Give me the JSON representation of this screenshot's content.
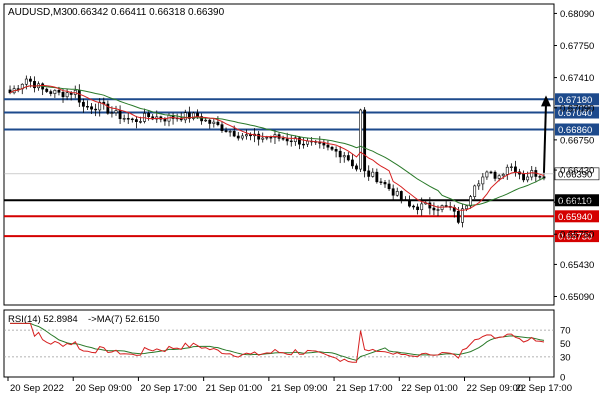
{
  "chart_data": {
    "type": "candlestick",
    "title": "AUDUSD,M30",
    "ohlc_header": "0.66342 0.66411 0.66318 0.66390",
    "price_axis": {
      "ticks": [
        0.6509,
        0.6543,
        0.6575,
        0.6609,
        0.6643,
        0.6675,
        0.6709,
        0.6741,
        0.6775,
        0.6809
      ],
      "tick_labels": [
        "0.65090",
        "0.65430",
        "0.65750",
        "0.66090",
        "0.66430",
        "0.66750",
        "0.67090",
        "0.67410",
        "0.67750",
        "0.68090"
      ],
      "ylim": [
        0.65,
        0.6819
      ]
    },
    "time_axis": {
      "labels": [
        "20 Sep 2022",
        "20 Sep 09:00",
        "20 Sep 17:00",
        "21 Sep 01:00",
        "21 Sep 09:00",
        "21 Sep 17:00",
        "22 Sep 01:00",
        "22 Sep 09:00",
        "22 Sep 17:00"
      ],
      "label_index": [
        0,
        16,
        32,
        48,
        64,
        80,
        96,
        112,
        128
      ],
      "total_bars": 132
    },
    "current_price": {
      "value": 0.6639,
      "label": "0.66390"
    },
    "levels": [
      {
        "value": 0.6718,
        "label": "0.67180",
        "color": "#1d4a8c"
      },
      {
        "value": 0.6704,
        "label": "0.67040",
        "color": "#1d4a8c"
      },
      {
        "value": 0.6686,
        "label": "0.66860",
        "color": "#1d4a8c"
      },
      {
        "value": 0.6611,
        "label": "0.66110",
        "color": "#000000"
      },
      {
        "value": 0.6594,
        "label": "0.65940",
        "color": "#d40000"
      },
      {
        "value": 0.6573,
        "label": "0.65730",
        "color": "#d40000"
      }
    ],
    "arrow": {
      "from": [
        131,
        0.664
      ],
      "to": [
        135,
        0.672
      ]
    },
    "moving_average_colors": {
      "fast": "#d62020",
      "slow": "#2a7a2a"
    },
    "price_path": [
      [
        0,
        0.6725
      ],
      [
        4,
        0.674
      ],
      [
        8,
        0.6728
      ],
      [
        12,
        0.6724
      ],
      [
        16,
        0.6726
      ],
      [
        18,
        0.671
      ],
      [
        22,
        0.6711
      ],
      [
        26,
        0.6702
      ],
      [
        30,
        0.6695
      ],
      [
        34,
        0.67
      ],
      [
        38,
        0.6698
      ],
      [
        42,
        0.67
      ],
      [
        46,
        0.67
      ],
      [
        48,
        0.6695
      ],
      [
        52,
        0.6688
      ],
      [
        56,
        0.6681
      ],
      [
        60,
        0.6677
      ],
      [
        64,
        0.6678
      ],
      [
        70,
        0.6675
      ],
      [
        74,
        0.667
      ],
      [
        78,
        0.6665
      ],
      [
        82,
        0.666
      ],
      [
        85,
        0.6645
      ],
      [
        86,
        0.6705
      ],
      [
        87,
        0.664
      ],
      [
        90,
        0.6635
      ],
      [
        94,
        0.662
      ],
      [
        98,
        0.6604
      ],
      [
        104,
        0.6605
      ],
      [
        108,
        0.6602
      ],
      [
        110,
        0.659
      ],
      [
        112,
        0.6608
      ],
      [
        114,
        0.663
      ],
      [
        117,
        0.6638
      ],
      [
        120,
        0.6637
      ],
      [
        122,
        0.6648
      ],
      [
        124,
        0.6645
      ],
      [
        126,
        0.6635
      ],
      [
        128,
        0.664
      ],
      [
        130,
        0.6639
      ]
    ],
    "rsi": {
      "label": "RSI(14) 52.8984",
      "ma_label": "->MA(7) 52.6150",
      "ylim": [
        0,
        100
      ],
      "ticks": [
        70,
        50,
        30,
        0
      ],
      "tick_labels": [
        "70",
        "50",
        "30",
        "0"
      ],
      "guide_levels": [
        30,
        70
      ],
      "colors": {
        "rsi": "#d62020",
        "ma": "#2a7a2a"
      }
    }
  }
}
